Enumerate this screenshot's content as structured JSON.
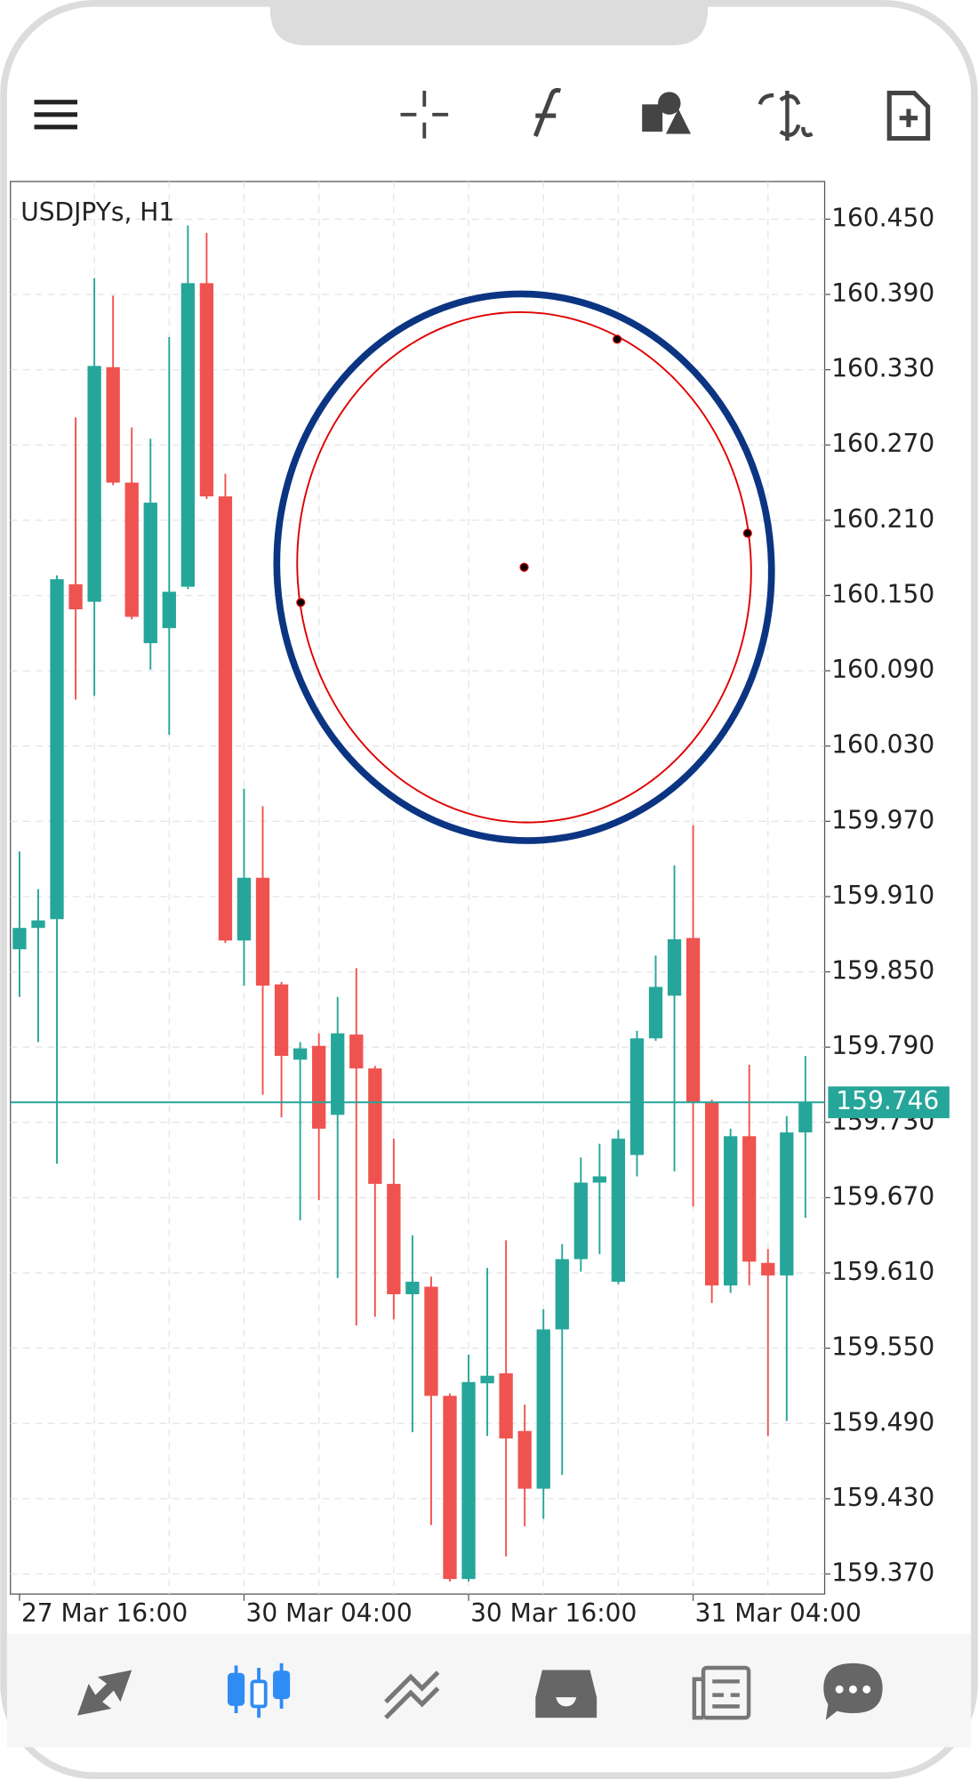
{
  "chart_data": {
    "type": "candlestick",
    "title": "USDJPYs, H1",
    "categories": [
      "27 Mar 16:00",
      null,
      null,
      null,
      null,
      null,
      null,
      null,
      null,
      null,
      null,
      null,
      "30 Mar 04:00",
      null,
      null,
      null,
      null,
      null,
      null,
      null,
      null,
      null,
      null,
      null,
      "30 Mar 16:00",
      null,
      null,
      null,
      null,
      null,
      null,
      null,
      null,
      null,
      null,
      null,
      "31 Mar 04:00",
      null,
      null,
      null,
      null,
      null,
      null
    ],
    "open": [
      159.868,
      159.885,
      159.892,
      160.159,
      160.145,
      160.332,
      160.24,
      160.112,
      160.124,
      160.157,
      160.399,
      160.229,
      159.875,
      159.925,
      159.84,
      159.78,
      159.791,
      159.736,
      159.8,
      159.773,
      159.681,
      159.593,
      159.599,
      159.512,
      159.366,
      159.522,
      159.53,
      159.484,
      159.438,
      159.565,
      159.621,
      159.682,
      159.603,
      159.704,
      159.797,
      159.831,
      159.877,
      159.746,
      159.6,
      159.719,
      159.618,
      159.608,
      159.722
    ],
    "high": [
      159.946,
      159.916,
      160.166,
      160.292,
      160.403,
      160.389,
      160.284,
      160.275,
      160.356,
      160.445,
      160.439,
      160.247,
      159.996,
      159.982,
      159.842,
      159.794,
      159.801,
      159.83,
      159.853,
      159.775,
      159.717,
      159.64,
      159.607,
      159.514,
      159.545,
      159.614,
      159.636,
      159.505,
      159.581,
      159.633,
      159.702,
      159.713,
      159.724,
      159.803,
      159.863,
      159.935,
      159.967,
      159.748,
      159.725,
      159.776,
      159.629,
      159.735,
      159.783
    ],
    "low": [
      159.83,
      159.794,
      159.697,
      160.067,
      160.07,
      160.238,
      160.131,
      160.091,
      160.039,
      160.155,
      160.227,
      159.873,
      159.839,
      159.752,
      159.734,
      159.652,
      159.668,
      159.606,
      159.568,
      159.575,
      159.573,
      159.483,
      159.409,
      159.364,
      159.364,
      159.48,
      159.384,
      159.408,
      159.414,
      159.449,
      159.611,
      159.625,
      159.601,
      159.687,
      159.795,
      159.691,
      159.663,
      159.586,
      159.594,
      159.6,
      159.48,
      159.492,
      159.654
    ],
    "close": [
      159.885,
      159.891,
      160.163,
      160.139,
      160.333,
      160.24,
      160.133,
      160.224,
      160.153,
      160.399,
      160.229,
      159.875,
      159.925,
      159.839,
      159.783,
      159.789,
      159.725,
      159.801,
      159.773,
      159.681,
      159.593,
      159.603,
      159.512,
      159.366,
      159.523,
      159.528,
      159.478,
      159.438,
      159.565,
      159.621,
      159.682,
      159.687,
      159.717,
      159.797,
      159.838,
      159.876,
      159.746,
      159.6,
      159.719,
      159.619,
      159.608,
      159.722,
      159.746
    ],
    "up_color": "#26a69a",
    "down_color": "#ef5350",
    "current_price": 159.746,
    "current_price_color": "#26a69a",
    "ylim": [
      159.354,
      160.48
    ],
    "yticks": [
      {
        "value": 160.45,
        "label": "160.450"
      },
      {
        "value": 160.39,
        "label": "160.390"
      },
      {
        "value": 160.33,
        "label": "160.330"
      },
      {
        "value": 160.27,
        "label": "160.270"
      },
      {
        "value": 160.21,
        "label": "160.210"
      },
      {
        "value": 160.15,
        "label": "160.150"
      },
      {
        "value": 160.09,
        "label": "160.090"
      },
      {
        "value": 160.03,
        "label": "160.030"
      },
      {
        "value": 159.97,
        "label": "159.970"
      },
      {
        "value": 159.91,
        "label": "159.910"
      },
      {
        "value": 159.85,
        "label": "159.850"
      },
      {
        "value": 159.79,
        "label": "159.790"
      },
      {
        "value": 159.73,
        "label": "159.730"
      },
      {
        "value": 159.67,
        "label": "159.670"
      },
      {
        "value": 159.61,
        "label": "159.610"
      },
      {
        "value": 159.55,
        "label": "159.550"
      },
      {
        "value": 159.49,
        "label": "159.490"
      },
      {
        "value": 159.43,
        "label": "159.430"
      },
      {
        "value": 159.37,
        "label": "159.370"
      }
    ],
    "grid": true
  }
}
